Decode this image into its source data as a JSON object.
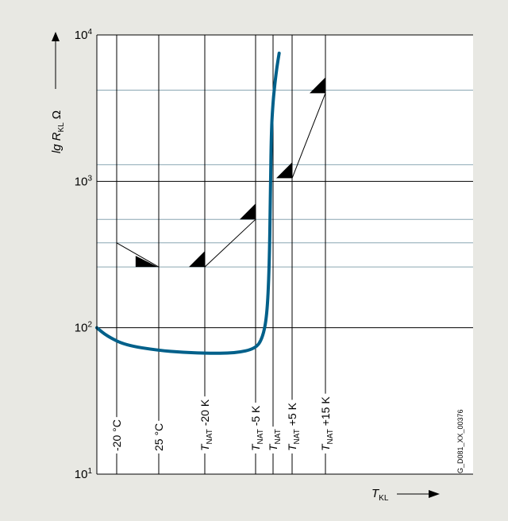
{
  "chart_data": {
    "type": "line",
    "ylabel": {
      "prefix": "lg ",
      "var": "R",
      "sub": "KL",
      "unit": " Ω"
    },
    "xlabel": {
      "var": "T",
      "sub": "KL"
    },
    "yscale": "log",
    "ylim": [
      10,
      10000
    ],
    "y_ticks": [
      {
        "base": "10",
        "exp": "1",
        "value": 10
      },
      {
        "base": "10",
        "exp": "2",
        "value": 100
      },
      {
        "base": "10",
        "exp": "3",
        "value": 1000
      },
      {
        "base": "10",
        "exp": "4",
        "value": 10000
      }
    ],
    "y_gridlines_minor": [
      260,
      380,
      550,
      1300,
      4200
    ],
    "x_markers": [
      {
        "pos": 1,
        "text": "-20 °C"
      },
      {
        "pos": 2,
        "text": "25 °C"
      },
      {
        "pos": 3,
        "var": "T",
        "sub": "NAT",
        "text": " -20 K"
      },
      {
        "pos": 4,
        "var": "T",
        "sub": "NAT",
        "text": " -5 K"
      },
      {
        "pos": 5,
        "var": "T",
        "sub": "NAT",
        "text": ""
      },
      {
        "pos": 6,
        "var": "T",
        "sub": "NAT",
        "text": " +5 K"
      },
      {
        "pos": 7,
        "var": "T",
        "sub": "NAT",
        "text": " +15 K"
      }
    ],
    "curve": {
      "points": [
        [
          0,
          100
        ],
        [
          0.5,
          88
        ],
        [
          1.2,
          76
        ],
        [
          2,
          70
        ],
        [
          2.5,
          68
        ],
        [
          3,
          67
        ],
        [
          3.6,
          67
        ],
        [
          4,
          72
        ],
        [
          4.4,
          85
        ],
        [
          4.65,
          120
        ],
        [
          4.78,
          250
        ],
        [
          4.85,
          800
        ],
        [
          4.9,
          2200
        ],
        [
          5.0,
          3500
        ],
        [
          5.1,
          4700
        ],
        [
          5.2,
          6000
        ],
        [
          5.32,
          7500
        ]
      ],
      "color": "#00608a"
    },
    "tolerance_segments": [
      {
        "from": [
          1,
          380
        ],
        "to": [
          2,
          260
        ]
      },
      {
        "from": [
          3,
          260
        ],
        "to": [
          4,
          550
        ]
      },
      {
        "from": [
          6,
          1050
        ],
        "to": [
          7,
          4000
        ]
      }
    ],
    "limit_markers": [
      {
        "x": 1.45,
        "y": 260,
        "dir": "down"
      },
      {
        "x": 3,
        "y": 260,
        "dir": "up"
      },
      {
        "x": 4,
        "y": 550,
        "dir": "up"
      },
      {
        "x": 6,
        "y": 1050,
        "dir": "up"
      },
      {
        "x": 7,
        "y": 4000,
        "dir": "up"
      }
    ]
  },
  "figure_code": "G_D081_XX_00376"
}
